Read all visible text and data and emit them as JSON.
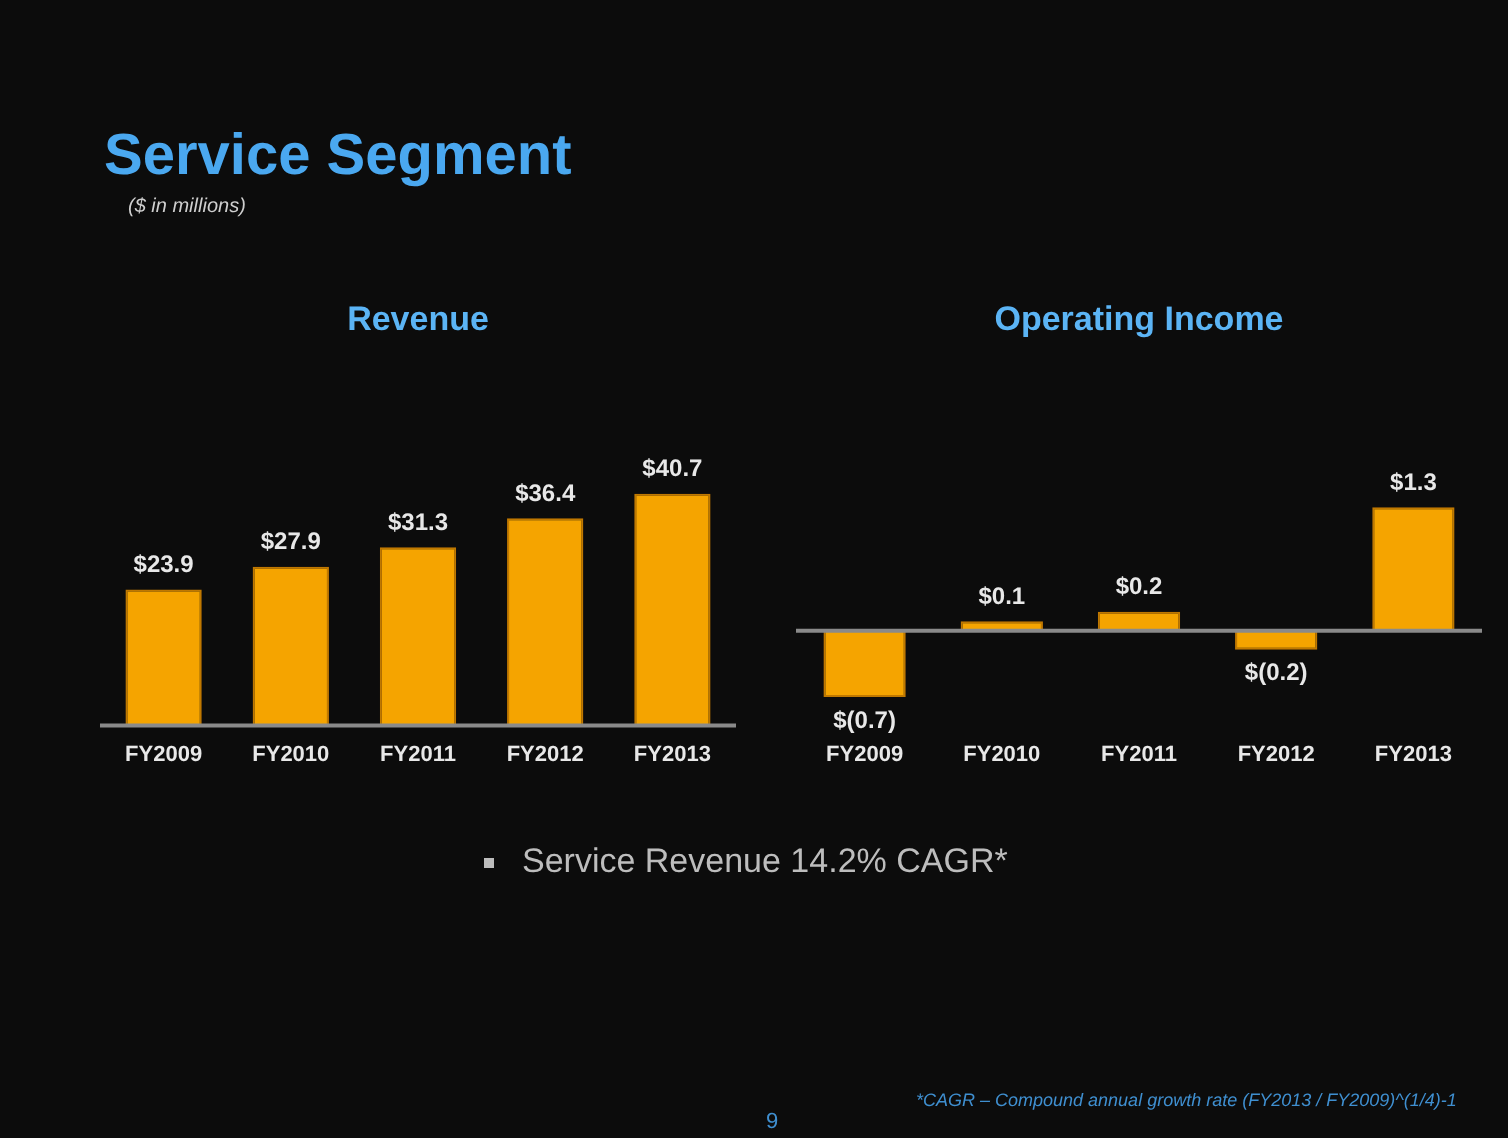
{
  "chart_data": [
    {
      "type": "bar",
      "title": "Revenue",
      "categories": [
        "FY2009",
        "FY2010",
        "FY2011",
        "FY2012",
        "FY2013"
      ],
      "values": [
        23.9,
        27.9,
        31.3,
        36.4,
        40.7
      ],
      "value_labels": [
        "$23.9",
        "$27.9",
        "$31.3",
        "$36.4",
        "$40.7"
      ],
      "color": "#f5a400",
      "legend": false,
      "annotations": [
        "Service Segment",
        "($ in millions)",
        "Service Revenue 14.2% CAGR*",
        "*CAGR – Compound annual growth rate (FY2013 / FY2009)^(1/4)-1",
        "9"
      ]
    },
    {
      "type": "bar",
      "title": "Operating Income",
      "categories": [
        "FY2009",
        "FY2010",
        "FY2011",
        "FY2012",
        "FY2013"
      ],
      "values": [
        -0.7,
        0.1,
        0.2,
        -0.2,
        1.3
      ],
      "value_labels": [
        "$(0.7)",
        "$0.1",
        "$0.2",
        "$(0.2)",
        "$1.3"
      ],
      "color": "#f5a400",
      "legend": false
    }
  ]
}
